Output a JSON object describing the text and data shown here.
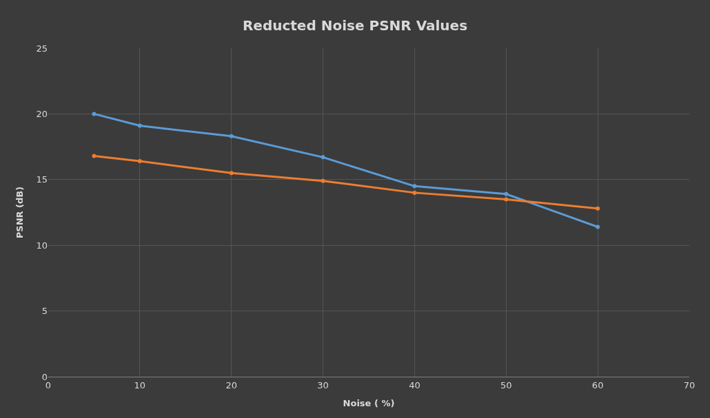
{
  "chart_data": {
    "type": "line",
    "title": "Reducted Noise PSNR Values",
    "xlabel": "Noise ( %)",
    "ylabel": "PSNR (dB)",
    "x": [
      5,
      10,
      20,
      30,
      40,
      50,
      60
    ],
    "series": [
      {
        "color": "#5b9bd5",
        "values": [
          20.0,
          19.1,
          18.3,
          16.7,
          14.5,
          13.9,
          11.4
        ]
      },
      {
        "color": "#ed7d31",
        "values": [
          16.8,
          16.4,
          15.5,
          14.9,
          14.0,
          13.5,
          12.8
        ]
      }
    ],
    "xlim": [
      0,
      70
    ],
    "xticks": [
      0,
      10,
      20,
      30,
      40,
      50,
      60,
      70
    ],
    "ylim": [
      0,
      25
    ],
    "yticks": [
      0,
      5,
      10,
      15,
      20,
      25
    ],
    "grid": true,
    "marker": "circle",
    "line_style": "solid"
  }
}
